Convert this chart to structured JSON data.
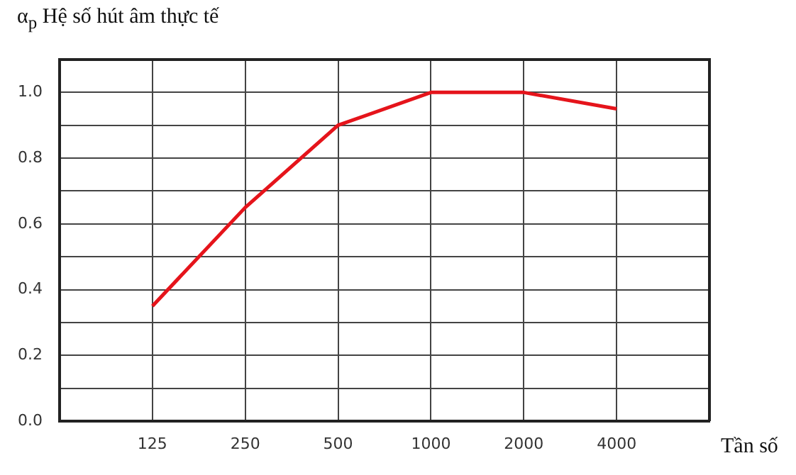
{
  "chart_data": {
    "type": "line",
    "ylabel": "α$_{p}$ Hệ số hút âm thực tế",
    "xlabel": "Tần số",
    "categories": [
      null,
      "125",
      "250",
      "500",
      "1000",
      "2000",
      "4000",
      null
    ],
    "series": [
      {
        "color": "#e5141b",
        "values": [
          null,
          0.35,
          0.65,
          0.9,
          1.0,
          1.0,
          0.95,
          null
        ]
      }
    ],
    "ylim": [
      0,
      1.1
    ],
    "yticks": [
      {
        "value": 0,
        "label": "0.0"
      },
      {
        "value": 0.1,
        "label": null
      },
      0.2,
      {
        "value": 0.3,
        "label": null
      },
      0.4,
      {
        "value": 0.5,
        "label": null
      },
      0.6,
      {
        "value": 0.7,
        "label": null
      },
      0.8,
      {
        "value": 0.9,
        "label": null
      },
      {
        "value": 1,
        "label": "1.0"
      }
    ],
    "grid": true
  }
}
